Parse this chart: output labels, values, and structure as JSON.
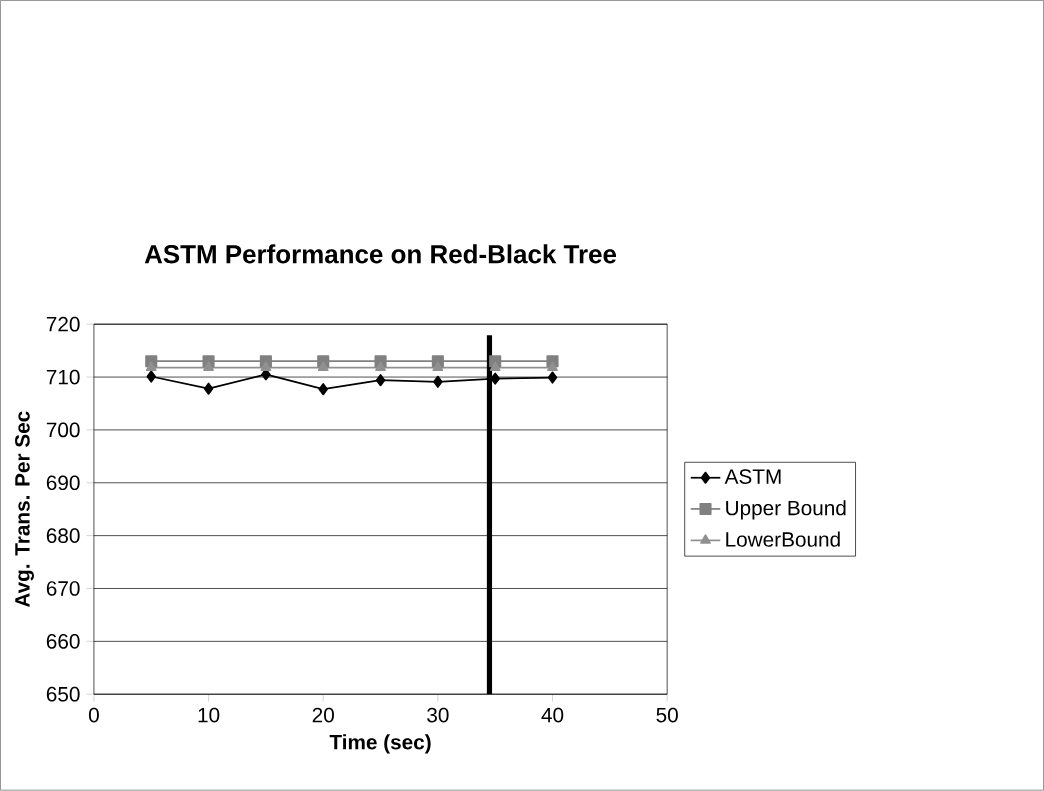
{
  "chart_data": {
    "type": "line",
    "title": "ASTM Performance on Red-Black Tree",
    "xlabel": "Time (sec)",
    "ylabel": "Avg. Trans. Per Sec",
    "x": [
      5,
      10,
      15,
      20,
      25,
      30,
      35,
      40
    ],
    "series": [
      {
        "name": "ASTM",
        "color": "#000000",
        "marker": "diamond",
        "values": [
          710.1,
          707.8,
          710.5,
          707.7,
          709.4,
          709.1,
          709.7,
          709.9
        ]
      },
      {
        "name": "Upper Bound",
        "color": "#808080",
        "marker": "square",
        "values": [
          713,
          713,
          713,
          713,
          713,
          713,
          713,
          713
        ]
      },
      {
        "name": "LowerBound",
        "color": "#909090",
        "marker": "triangle",
        "values": [
          711.8,
          711.8,
          711.8,
          711.8,
          711.8,
          711.8,
          711.8,
          711.8
        ]
      }
    ],
    "xlim": [
      0,
      50
    ],
    "xticks": [
      0,
      10,
      20,
      30,
      40,
      50
    ],
    "ylim": [
      650,
      720
    ],
    "yticks": [
      650,
      660,
      670,
      680,
      690,
      700,
      710,
      720
    ],
    "grid": "y",
    "legend": "right",
    "line_style": "solid",
    "ref_lines": [
      {
        "axis": "x",
        "value": 34.5,
        "color": "#000000"
      }
    ]
  }
}
